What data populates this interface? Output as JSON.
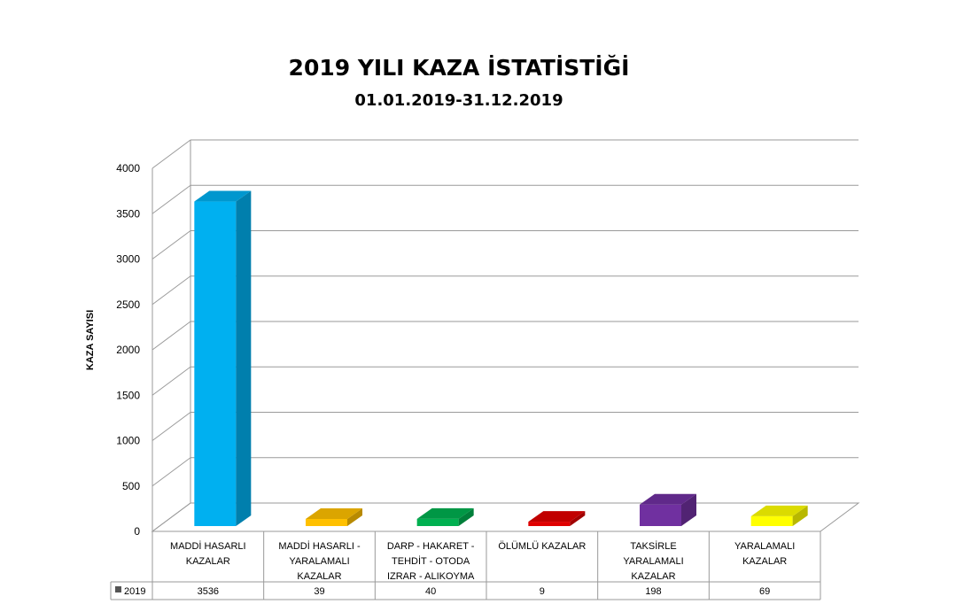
{
  "chart_data": {
    "type": "bar",
    "title": "2019 YILI KAZA İSTATİSTİĞİ",
    "subtitle": "01.01.2019-31.12.2019",
    "ylabel": "KAZA SAYISI",
    "ylim": [
      0,
      4000
    ],
    "yticks": [
      0,
      500,
      1000,
      1500,
      2000,
      2500,
      3000,
      3500,
      4000
    ],
    "grid": true,
    "three_d": true,
    "data_table": true,
    "categories": [
      [
        "MADDİ HASARLI",
        "KAZALAR"
      ],
      [
        "MADDİ HASARLI -",
        "YARALAMALI",
        "KAZALAR"
      ],
      [
        "DARP - HAKARET -",
        "TEHDİT - OTODA",
        "IZRAR - ALIKOYMA"
      ],
      [
        "ÖLÜMLÜ KAZALAR"
      ],
      [
        "TAKSİRLE",
        "YARALAMALI",
        "KAZALAR"
      ],
      [
        "YARALAMALI",
        "KAZALAR"
      ]
    ],
    "series": [
      {
        "name": "2019",
        "values": [
          3536,
          39,
          40,
          9,
          198,
          69
        ],
        "colors": [
          "#00B0F0",
          "#FFC000",
          "#00B050",
          "#E00000",
          "#7030A0",
          "#FFFF00"
        ]
      }
    ]
  }
}
